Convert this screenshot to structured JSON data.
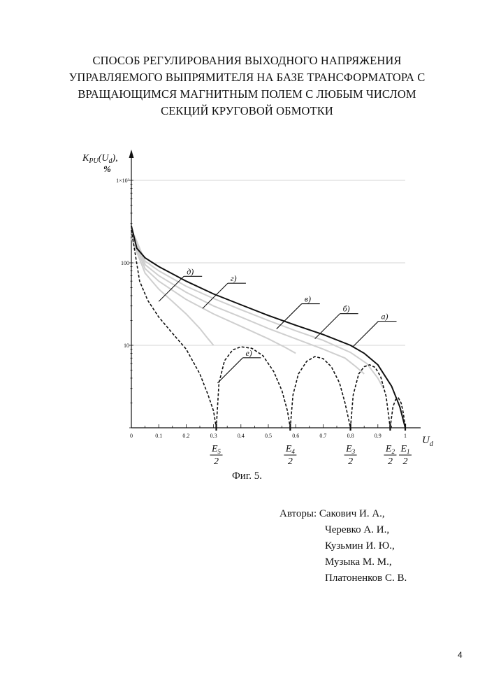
{
  "title_lines": [
    "СПОСОБ РЕГУЛИРОВАНИЯ ВЫХОДНОГО НАПРЯЖЕНИЯ",
    "УПРАВЛЯЕМОГО ВЫПРЯМИТЕЛЯ НА БАЗЕ ТРАНСФОРМАТОРА С",
    "ВРАЩАЮЩИМСЯ МАГНИТНЫМ ПОЛЕМ С ЛЮБЫМ ЧИСЛОМ",
    "СЕКЦИЙ КРУГОВОЙ ОБМОТКИ"
  ],
  "figure_caption": "Фиг. 5.",
  "authors_label": "Авторы:",
  "authors": [
    "Сакович И. А.,",
    "Черевко А. И.,",
    "Кузьмин И. Ю.,",
    "Музыка М. М.,",
    "Платоненков С. В."
  ],
  "page_number": "4",
  "chart_data": {
    "type": "line",
    "ylabel": "K_PU(U_d),",
    "yunit": "%",
    "xlabel": "U_d",
    "yscale": "log",
    "xlim": [
      0,
      1
    ],
    "ylim": [
      1,
      1000
    ],
    "x_ticks": [
      "0",
      "0.1",
      "0.2",
      "0.3",
      "0.4",
      "0.5",
      "0.6",
      "0.7",
      "0.8",
      "0.9",
      "1"
    ],
    "y_ticks": [
      {
        "value": 10,
        "label": "10"
      },
      {
        "value": 100,
        "label": "100"
      },
      {
        "value": 1000,
        "label": "1×10³"
      }
    ],
    "grid": "horizontal at 10, 100, 1000",
    "point_labels": [
      {
        "at": 0.31,
        "num": "E5",
        "den": "2"
      },
      {
        "at": 0.58,
        "num": "E4",
        "den": "2"
      },
      {
        "at": 0.8,
        "num": "E3",
        "den": "2"
      },
      {
        "at": 0.945,
        "num": "E2",
        "den": "2"
      },
      {
        "at": 1.0,
        "num": "E1",
        "den": "2"
      }
    ],
    "series": [
      {
        "name": "а)",
        "style": "solid-black",
        "x": [
          0,
          0.02,
          0.05,
          0.1,
          0.2,
          0.3,
          0.4,
          0.5,
          0.6,
          0.7,
          0.8,
          0.85,
          0.9,
          0.95,
          0.98,
          1.0
        ],
        "y": [
          280,
          150,
          115,
          90,
          60,
          42,
          31,
          23,
          17.5,
          13.5,
          10,
          8,
          5.8,
          3.2,
          1.8,
          1
        ]
      },
      {
        "name": "б)",
        "style": "light-gray",
        "x": [
          0,
          0.05,
          0.1,
          0.2,
          0.3,
          0.4,
          0.5,
          0.6,
          0.7,
          0.8,
          0.86,
          0.9,
          0.92
        ],
        "y": [
          260,
          105,
          80,
          52,
          37,
          27,
          20,
          15,
          11.5,
          8.2,
          6,
          4,
          3
        ]
      },
      {
        "name": "в)",
        "style": "light-gray",
        "x": [
          0,
          0.05,
          0.1,
          0.2,
          0.3,
          0.4,
          0.5,
          0.6,
          0.7,
          0.78,
          0.82,
          0.85
        ],
        "y": [
          240,
          95,
          70,
          44,
          30,
          22,
          16,
          12,
          9,
          7,
          5.5,
          4.5
        ]
      },
      {
        "name": "г)",
        "style": "light-gray",
        "x": [
          0,
          0.05,
          0.1,
          0.2,
          0.3,
          0.4,
          0.5,
          0.56,
          0.6
        ],
        "y": [
          220,
          85,
          60,
          36,
          24,
          17,
          12,
          9.5,
          8
        ]
      },
      {
        "name": "д)",
        "style": "light-gray",
        "x": [
          0,
          0.05,
          0.1,
          0.15,
          0.2,
          0.25,
          0.28,
          0.3
        ],
        "y": [
          200,
          75,
          48,
          34,
          24,
          16,
          12,
          10
        ]
      },
      {
        "name": "е)",
        "style": "dashed-black",
        "segments": [
          {
            "x": [
              0,
              0.03,
              0.06,
              0.1,
              0.15,
              0.2,
              0.25,
              0.28,
              0.3,
              0.31
            ],
            "y": [
              250,
              60,
              35,
              22,
              14,
              9,
              4.5,
              2.5,
              1.6,
              1
            ]
          },
          {
            "x": [
              0.31,
              0.32,
              0.34,
              0.37,
              0.4,
              0.44,
              0.48,
              0.52,
              0.55,
              0.57,
              0.58
            ],
            "y": [
              1,
              3.5,
              6.5,
              8.8,
              9.6,
              9.2,
              7.5,
              4.8,
              2.8,
              1.6,
              1
            ]
          },
          {
            "x": [
              0.58,
              0.59,
              0.61,
              0.64,
              0.67,
              0.7,
              0.73,
              0.76,
              0.78,
              0.8
            ],
            "y": [
              1,
              2.5,
              4.5,
              6.4,
              7.3,
              6.9,
              5.5,
              3.5,
              2.0,
              1
            ]
          },
          {
            "x": [
              0.8,
              0.81,
              0.83,
              0.85,
              0.87,
              0.89,
              0.91,
              0.93,
              0.945
            ],
            "y": [
              1,
              2.5,
              4.5,
              5.5,
              5.8,
              5.4,
              4.2,
              2.4,
              1
            ]
          },
          {
            "x": [
              0.945,
              0.955,
              0.965,
              0.975,
              0.985,
              0.993,
              1.0
            ],
            "y": [
              1,
              1.8,
              2.2,
              2.3,
              2.0,
              1.5,
              1
            ]
          }
        ]
      }
    ],
    "callouts": [
      {
        "label": "д)",
        "at": [
          0.1,
          34
        ]
      },
      {
        "label": "г)",
        "at": [
          0.26,
          28
        ]
      },
      {
        "label": "в)",
        "at": [
          0.53,
          15.8
        ]
      },
      {
        "label": "б)",
        "at": [
          0.67,
          12
        ]
      },
      {
        "label": "а)",
        "at": [
          0.81,
          9.7
        ]
      },
      {
        "label": "е)",
        "at": [
          0.315,
          3.5
        ]
      }
    ]
  }
}
